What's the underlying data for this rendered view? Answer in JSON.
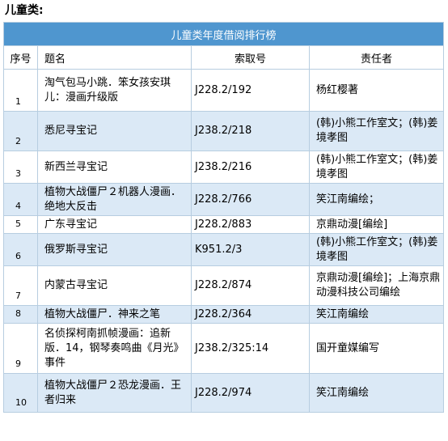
{
  "section_title": "儿童类:",
  "table": {
    "caption": "儿童类年度借阅排行榜",
    "headers": {
      "no": "序号",
      "title": "题名",
      "call": "索取号",
      "resp": "责任者"
    },
    "rows": [
      {
        "no": "1",
        "title": "淘气包马小跳．笨女孩安琪儿：漫画升级版",
        "call": "J228.2/192",
        "resp": "杨红樱著"
      },
      {
        "no": "2",
        "title": "悉尼寻宝记",
        "call": "J238.2/218",
        "resp": "(韩)小熊工作室文；(韩)姜境孝图"
      },
      {
        "no": "3",
        "title": "新西兰寻宝记",
        "call": "J238.2/216",
        "resp": "(韩)小熊工作室文；(韩)姜境孝图"
      },
      {
        "no": "4",
        "title": "植物大战僵尸２机器人漫画．绝地大反击",
        "call": "J228.2/766",
        "resp": "笑江南编绘；"
      },
      {
        "no": "5",
        "title": "广东寻宝记",
        "call": "J228.2/883",
        "resp": "京鼎动漫[编绘]"
      },
      {
        "no": "6",
        "title": "俄罗斯寻宝记",
        "call": "K951.2/3",
        "resp": "(韩)小熊工作室文；(韩)姜境孝图"
      },
      {
        "no": "7",
        "title": "内蒙古寻宝记",
        "call": "J228.2/874",
        "resp": "京鼎动漫[编绘]；上海京鼎动漫科技公司编绘"
      },
      {
        "no": "8",
        "title": "植物大战僵尸．神来之笔",
        "call": "J228.2/364",
        "resp": "笑江南编绘"
      },
      {
        "no": "9",
        "title": "名侦探柯南抓帧漫画：追新版．14，钢琴奏鸣曲《月光》事件",
        "call": "J238.2/325:14",
        "resp": "国开童媒编写"
      },
      {
        "no": "10",
        "title": "植物大战僵尸２恐龙漫画．王者归来",
        "call": "J228.2/974",
        "resp": "笑江南编绘"
      }
    ]
  }
}
